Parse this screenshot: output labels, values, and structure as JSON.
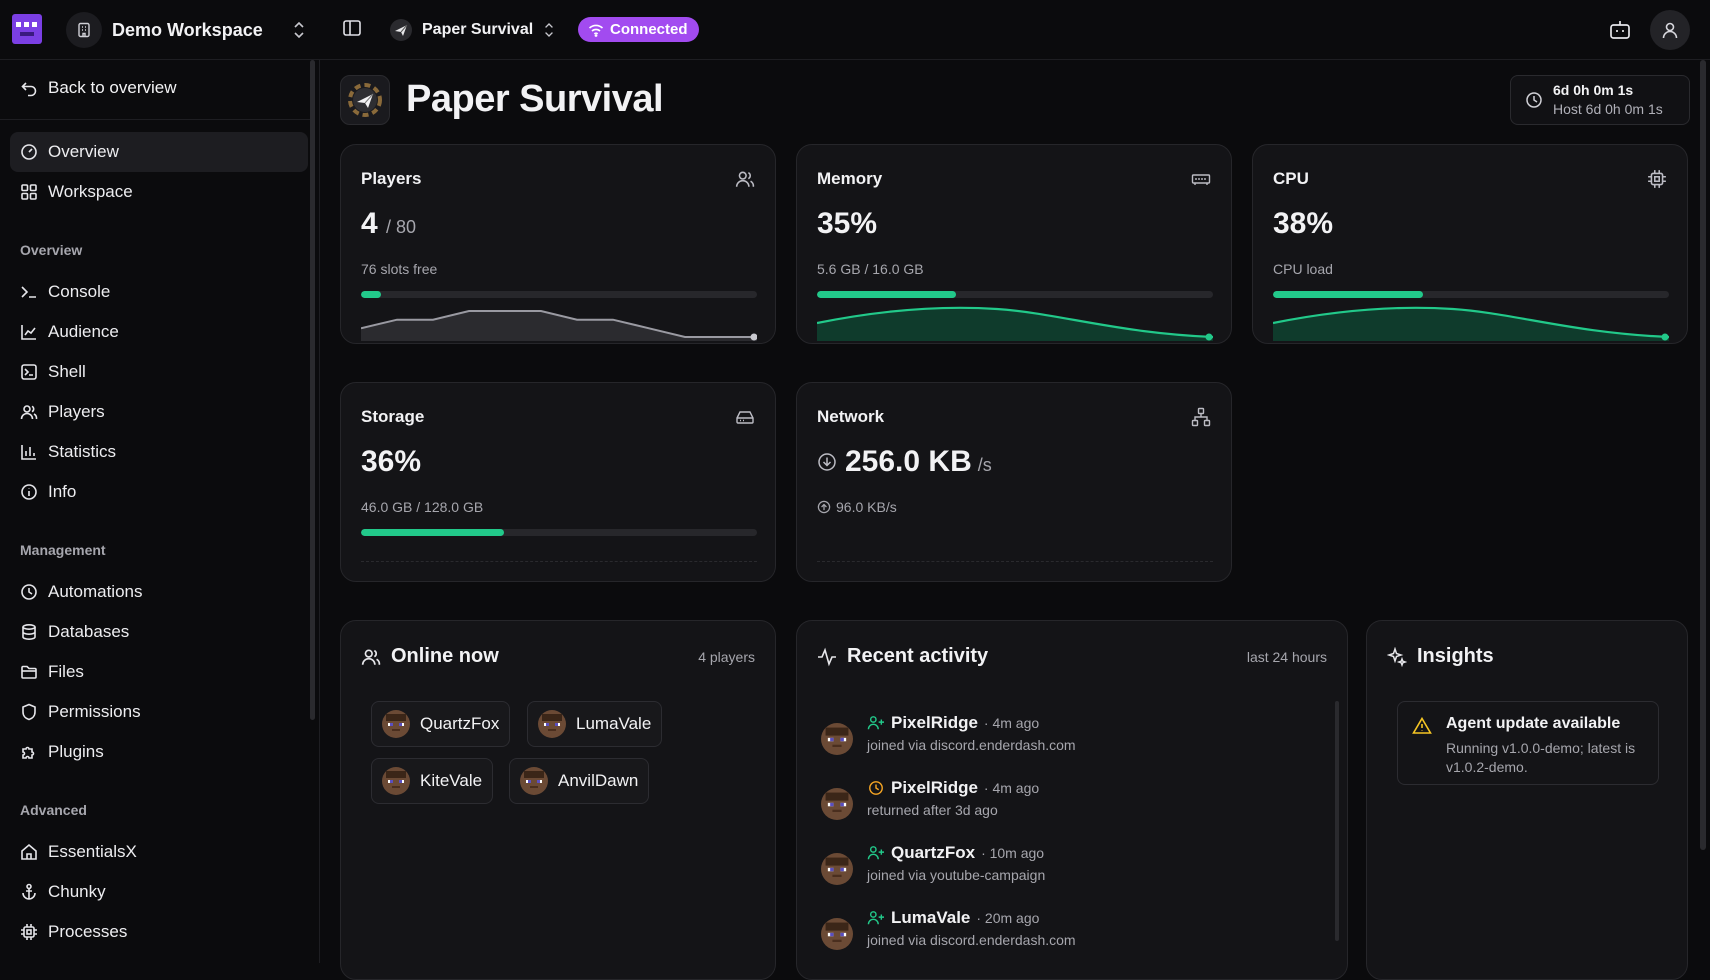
{
  "topbar": {
    "workspace_name": "Demo Workspace",
    "server_name": "Paper Survival",
    "status_badge": "Connected",
    "accent_color": "#a24bf0"
  },
  "sidebar": {
    "back_label": "Back to overview",
    "top_items": [
      {
        "label": "Overview",
        "icon": "gauge-icon",
        "active": true
      },
      {
        "label": "Workspace",
        "icon": "grid-icon"
      }
    ],
    "sections": [
      {
        "title": "Overview",
        "items": [
          {
            "label": "Console",
            "icon": "terminal-icon"
          },
          {
            "label": "Audience",
            "icon": "chart-line-icon"
          },
          {
            "label": "Shell",
            "icon": "shell-icon"
          },
          {
            "label": "Players",
            "icon": "users-icon"
          },
          {
            "label": "Statistics",
            "icon": "bar-chart-icon"
          },
          {
            "label": "Info",
            "icon": "info-icon"
          }
        ]
      },
      {
        "title": "Management",
        "items": [
          {
            "label": "Automations",
            "icon": "clock-icon"
          },
          {
            "label": "Databases",
            "icon": "database-icon"
          },
          {
            "label": "Files",
            "icon": "folder-icon"
          },
          {
            "label": "Permissions",
            "icon": "shield-icon"
          },
          {
            "label": "Plugins",
            "icon": "puzzle-icon"
          }
        ]
      },
      {
        "title": "Advanced",
        "items": [
          {
            "label": "EssentialsX",
            "icon": "house-icon"
          },
          {
            "label": "Chunky",
            "icon": "anchor-icon"
          },
          {
            "label": "Processes",
            "icon": "cpu-icon"
          }
        ]
      }
    ]
  },
  "header": {
    "title": "Paper Survival",
    "uptime": "6d 0h 0m 1s",
    "host_uptime": "Host 6d 0h 0m 1s"
  },
  "cards": {
    "players": {
      "title": "Players",
      "value": "4",
      "max": "/ 80",
      "sub": "76 slots free",
      "fraction": 0.05,
      "history": [
        1,
        2,
        2,
        3,
        3,
        3,
        2,
        2,
        1,
        0,
        0,
        0
      ]
    },
    "memory": {
      "title": "Memory",
      "value": "35%",
      "sub": "5.6 GB / 16.0 GB",
      "fraction": 0.35
    },
    "cpu": {
      "title": "CPU",
      "value": "38%",
      "sub": "CPU load",
      "fraction": 0.38
    },
    "storage": {
      "title": "Storage",
      "value": "36%",
      "sub": "46.0 GB / 128.0 GB",
      "fraction": 0.36
    },
    "network": {
      "title": "Network",
      "value": "256.0 KB",
      "unit": "/s",
      "up": "96.0 KB/s"
    }
  },
  "online": {
    "title": "Online now",
    "count": "4 players",
    "players": [
      "QuartzFox",
      "LumaVale",
      "KiteVale",
      "AnvilDawn"
    ]
  },
  "activity": {
    "title": "Recent activity",
    "range": "last 24 hours",
    "items": [
      {
        "name": "PixelRidge",
        "ago": "· 4m ago",
        "detail": "joined via discord.enderdash.com",
        "kind": "joined"
      },
      {
        "name": "PixelRidge",
        "ago": "· 4m ago",
        "detail": "returned after 3d ago",
        "kind": "returned"
      },
      {
        "name": "QuartzFox",
        "ago": "· 10m ago",
        "detail": "joined via youtube-campaign",
        "kind": "joined"
      },
      {
        "name": "LumaVale",
        "ago": "· 20m ago",
        "detail": "joined via discord.enderdash.com",
        "kind": "joined"
      }
    ]
  },
  "insights": {
    "title": "Insights",
    "alert_title": "Agent update available",
    "alert_text": "Running v1.0.0-demo; latest is v1.0.2-demo."
  }
}
